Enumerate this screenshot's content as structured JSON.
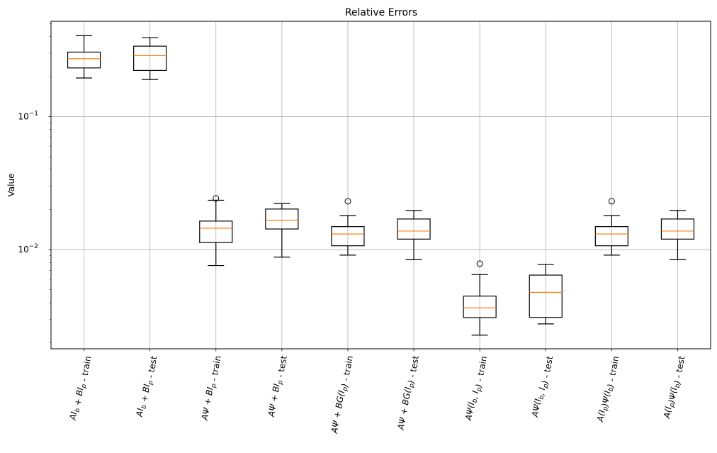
{
  "chart_data": {
    "type": "box",
    "title": "Relative Errors",
    "xlabel": "",
    "ylabel": "Value",
    "yscale": "log",
    "ylim": [
      0.0018,
      0.52
    ],
    "grid": true,
    "y_ticks": [
      {
        "value": 0.1,
        "base": "10",
        "exp": "−1"
      },
      {
        "value": 0.01,
        "base": "10",
        "exp": "−2"
      }
    ],
    "colors": {
      "box": "#000000",
      "median": "#ff7f0e",
      "grid": "#b0b0b0"
    },
    "categories": [
      {
        "pre": "AI",
        "p1": "b",
        "mid": " + BI",
        "p2": "p",
        "post": "",
        "suffix": " - train"
      },
      {
        "pre": "AI",
        "p1": "b",
        "mid": " + BI",
        "p2": "p",
        "post": "",
        "suffix": " - test"
      },
      {
        "pre": "AΨ + BI",
        "p1": "p",
        "mid": "",
        "p2": "",
        "post": "",
        "suffix": " - train"
      },
      {
        "pre": "AΨ + BI",
        "p1": "p",
        "mid": "",
        "p2": "",
        "post": "",
        "suffix": " - test"
      },
      {
        "pre": "AΨ + BG(I",
        "p1": "p",
        "mid": ")",
        "p2": "",
        "post": "",
        "suffix": " - train"
      },
      {
        "pre": "AΨ + BG(I",
        "p1": "p",
        "mid": ")",
        "p2": "",
        "post": "",
        "suffix": " - test"
      },
      {
        "pre": "AΨ(I",
        "p1": "b",
        "mid": ", I",
        "p2": "p",
        "post": ")",
        "suffix": " - train"
      },
      {
        "pre": "AΨ(I",
        "p1": "b",
        "mid": ", I",
        "p2": "p",
        "post": ")",
        "suffix": " - test"
      },
      {
        "pre": "A(I",
        "p1": "p",
        "mid": ")Ψ(I",
        "p2": "b",
        "post": ")",
        "suffix": " - train"
      },
      {
        "pre": "A(I",
        "p1": "p",
        "mid": ")Ψ(I",
        "p2": "b",
        "post": ")",
        "suffix": " - test"
      }
    ],
    "boxes": [
      {
        "whislo": 0.195,
        "q1": 0.232,
        "med": 0.272,
        "q3": 0.305,
        "whishi": 0.405,
        "fliers": []
      },
      {
        "whislo": 0.19,
        "q1": 0.222,
        "med": 0.287,
        "q3": 0.338,
        "whishi": 0.392,
        "fliers": []
      },
      {
        "whislo": 0.0076,
        "q1": 0.0113,
        "med": 0.0145,
        "q3": 0.0164,
        "whishi": 0.0235,
        "fliers": [
          0.0243
        ]
      },
      {
        "whislo": 0.0088,
        "q1": 0.0143,
        "med": 0.0166,
        "q3": 0.0202,
        "whishi": 0.0222,
        "fliers": []
      },
      {
        "whislo": 0.0091,
        "q1": 0.0107,
        "med": 0.0131,
        "q3": 0.0149,
        "whishi": 0.018,
        "fliers": [
          0.0231
        ]
      },
      {
        "whislo": 0.0084,
        "q1": 0.012,
        "med": 0.0138,
        "q3": 0.017,
        "whishi": 0.0197,
        "fliers": []
      },
      {
        "whislo": 0.00228,
        "q1": 0.00309,
        "med": 0.00365,
        "q3": 0.00448,
        "whishi": 0.0065,
        "fliers": [
          0.00785
        ]
      },
      {
        "whislo": 0.00277,
        "q1": 0.0031,
        "med": 0.00478,
        "q3": 0.00644,
        "whishi": 0.00773,
        "fliers": []
      },
      {
        "whislo": 0.0091,
        "q1": 0.0107,
        "med": 0.0131,
        "q3": 0.0149,
        "whishi": 0.018,
        "fliers": [
          0.0231
        ]
      },
      {
        "whislo": 0.0084,
        "q1": 0.012,
        "med": 0.0138,
        "q3": 0.017,
        "whishi": 0.0197,
        "fliers": []
      }
    ]
  }
}
